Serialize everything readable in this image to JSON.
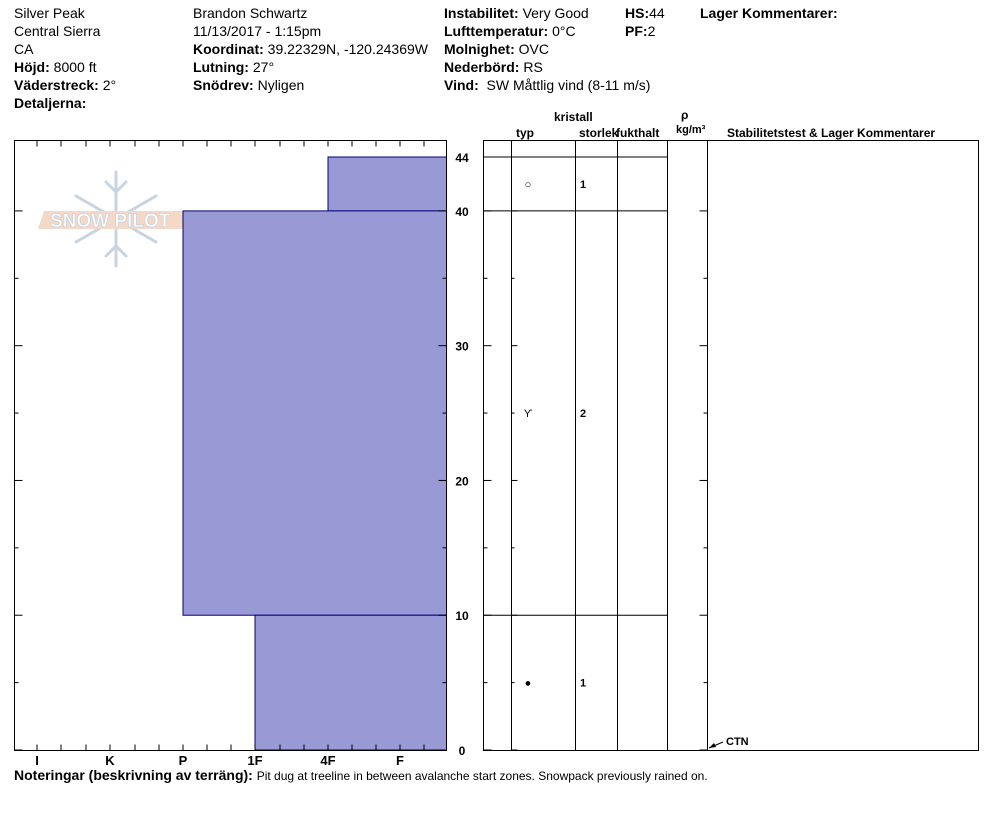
{
  "header": {
    "location": "Silver Peak",
    "range": "Central Sierra",
    "state": "CA",
    "elevation_label": "Höjd:",
    "elevation": "8000 ft",
    "aspect_label": "Väderstreck:",
    "aspect": "2°",
    "details_label": "Detaljerna:",
    "observer": "Brandon Schwartz",
    "datetime": "11/13/2017 - 1:15pm",
    "coord_label": "Koordinat:",
    "coord": "39.22329N, -120.24369W",
    "slope_label": "Lutning:",
    "slope": "27°",
    "drift_label": "Snödrev:",
    "drift": "Nyligen",
    "stability_label": "Instabilitet:",
    "stability": "Very Good",
    "airtemp_label": "Lufttemperatur:",
    "airtemp": "0°C",
    "sky_label": "Molnighet:",
    "sky": "OVC",
    "precip_label": "Nederbörd:",
    "precip": "RS",
    "wind_label": "Vind:",
    "wind": "SW  Måttlig vind (8-11 m/s)",
    "hs_label": "HS:",
    "hs": "44",
    "pf_label": "PF:",
    "pf": "2",
    "layer_comments_label": "Lager Kommentarer:"
  },
  "columns": {
    "crystal": "kristall",
    "type": "typ",
    "size": "storlek",
    "moisture": "fukthalt",
    "rho": "ρ",
    "density_unit": "kg/m³",
    "stability_col": "Stabilitetstest & Lager Kommentarer"
  },
  "logo_text": "SNOW PILOT",
  "notes_label": "Noteringar (beskrivning av terräng):",
  "notes": "Pit dug at treeline in between avalanche start zones. Snowpack previously rained on.",
  "chart_data": {
    "type": "bar",
    "title": "",
    "xlabel": "",
    "ylabel": "",
    "hardness_categories": [
      "I",
      "K",
      "P",
      "1F",
      "4F",
      "F"
    ],
    "ylim": [
      0,
      44
    ],
    "y_ticks": [
      0,
      10,
      20,
      30,
      40,
      44
    ],
    "layers": [
      {
        "top": 44,
        "bottom": 40,
        "hardness": "4F",
        "crystal_size": "1",
        "crystal_symbol": "○"
      },
      {
        "top": 40,
        "bottom": 10,
        "hardness": "P",
        "crystal_size": "2",
        "crystal_symbol": "ϒ"
      },
      {
        "top": 10,
        "bottom": 0,
        "hardness": "1F",
        "crystal_size": "1",
        "crystal_symbol": "●"
      }
    ],
    "tests": [
      {
        "label": "CTN",
        "height": 0
      }
    ],
    "fill_color": "#9999d6",
    "outline_color": "#000080"
  }
}
